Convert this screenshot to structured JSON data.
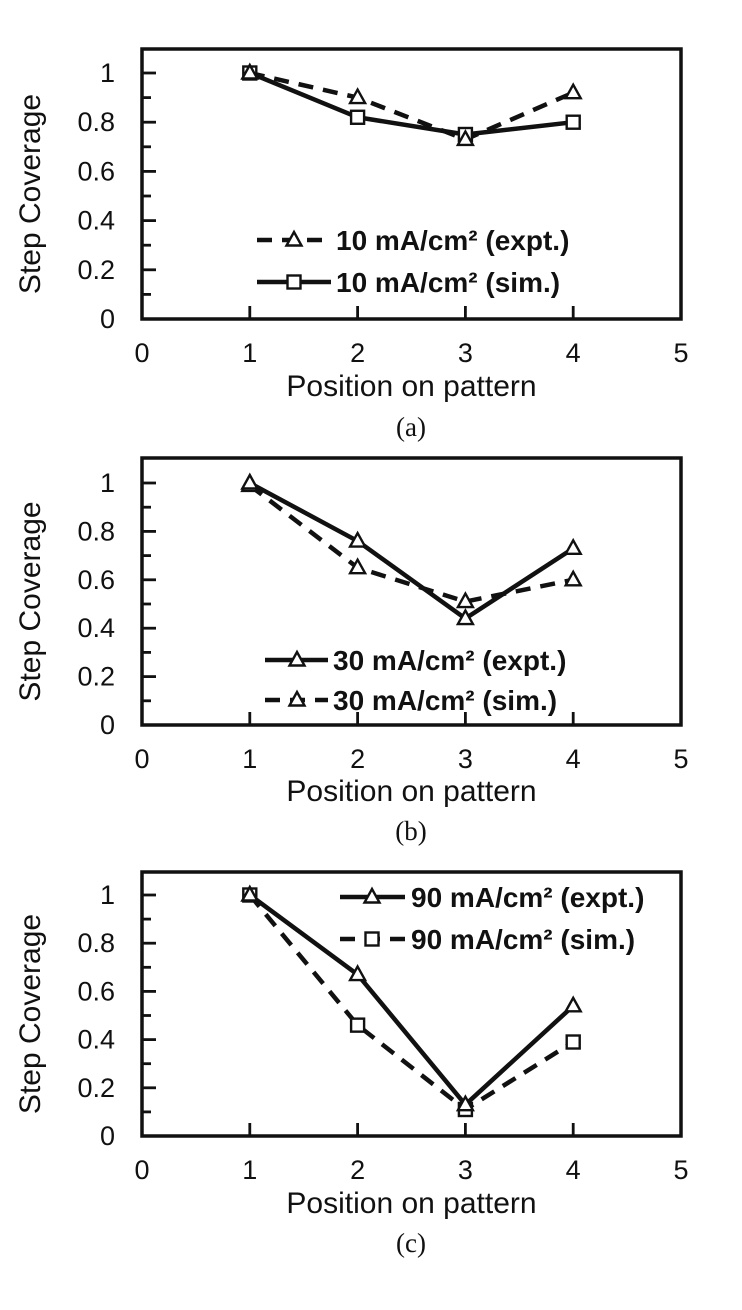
{
  "figure": {
    "background": "#ffffff",
    "ink_color": "#111111",
    "marker_fill": "#ffffff"
  },
  "chart_data": [
    {
      "type": "line",
      "caption": "(a)",
      "xlabel": "Position on pattern",
      "ylabel": "Step Coverage",
      "xlim": [
        0,
        5
      ],
      "ylim": [
        0,
        1.1
      ],
      "xtick_labels": [
        0,
        1,
        2,
        3,
        4,
        5
      ],
      "xtick_marks": [
        1,
        2,
        3,
        4
      ],
      "ytick_labels": [
        0,
        0.2,
        0.4,
        0.6,
        0.8,
        1
      ],
      "ytick_minor": [
        0.1,
        0.3,
        0.5,
        0.7,
        0.9
      ],
      "grid": "off",
      "legend_position": "lower-center",
      "x": [
        1,
        2,
        3,
        4
      ],
      "series": [
        {
          "name": "10 mA/cm² (expt.)",
          "line": "dashed",
          "marker": "triangle",
          "values": [
            1.0,
            0.9,
            0.73,
            0.92
          ]
        },
        {
          "name": "10 mA/cm² (sim.)",
          "line": "solid",
          "marker": "square",
          "values": [
            1.0,
            0.82,
            0.75,
            0.8
          ]
        }
      ]
    },
    {
      "type": "line",
      "caption": "(b)",
      "xlabel": "Position on pattern",
      "ylabel": "Step Coverage",
      "xlim": [
        0,
        5
      ],
      "ylim": [
        0,
        1.1
      ],
      "xtick_labels": [
        0,
        1,
        2,
        3,
        4,
        5
      ],
      "xtick_marks": [
        1,
        2,
        3,
        4
      ],
      "ytick_labels": [
        0,
        0.2,
        0.4,
        0.6,
        0.8,
        1
      ],
      "ytick_minor": [
        0.1,
        0.3,
        0.5,
        0.7,
        0.9
      ],
      "grid": "off",
      "legend_position": "lower-center",
      "x": [
        1,
        2,
        3,
        4
      ],
      "series": [
        {
          "name": "30 mA/cm² (expt.)",
          "line": "solid",
          "marker": "triangle",
          "values": [
            1.0,
            0.76,
            0.44,
            0.73
          ]
        },
        {
          "name": "30 mA/cm² (sim.)",
          "line": "dashed",
          "marker": "triangle",
          "values": [
            0.99,
            0.65,
            0.51,
            0.6
          ]
        }
      ]
    },
    {
      "type": "line",
      "caption": "(c)",
      "xlabel": "Position on pattern",
      "ylabel": "Step Coverage",
      "xlim": [
        0,
        5
      ],
      "ylim": [
        0,
        1.1
      ],
      "xtick_labels": [
        0,
        1,
        2,
        3,
        4,
        5
      ],
      "xtick_marks": [
        1,
        2,
        3,
        4
      ],
      "ytick_labels": [
        0,
        0.2,
        0.4,
        0.6,
        0.8,
        1
      ],
      "ytick_minor": [
        0.1,
        0.3,
        0.5,
        0.7,
        0.9
      ],
      "grid": "off",
      "legend_position": "upper-right",
      "x": [
        1,
        2,
        3,
        4
      ],
      "series": [
        {
          "name": "90 mA/cm² (expt.)",
          "line": "solid",
          "marker": "triangle",
          "values": [
            1.0,
            0.67,
            0.13,
            0.54
          ]
        },
        {
          "name": "90 mA/cm² (sim.)",
          "line": "dashed",
          "marker": "square",
          "values": [
            1.0,
            0.46,
            0.11,
            0.39
          ]
        }
      ]
    }
  ]
}
